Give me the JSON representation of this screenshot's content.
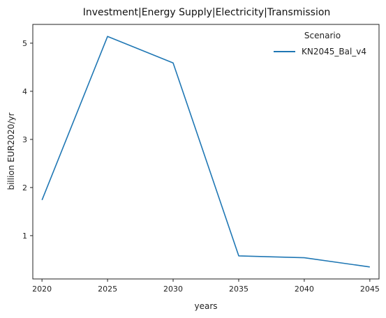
{
  "chart_data": {
    "type": "line",
    "title": "Investment|Energy Supply|Electricity|Transmission",
    "xlabel": "years",
    "ylabel": "billion EUR2020/yr",
    "x": [
      2020,
      2025,
      2030,
      2035,
      2040,
      2045
    ],
    "x_ticks": [
      "2020",
      "2025",
      "2030",
      "2035",
      "2040",
      "2045"
    ],
    "y_ticks": [
      "1",
      "2",
      "3",
      "4",
      "5"
    ],
    "y_tick_values": [
      1,
      2,
      3,
      4,
      5
    ],
    "xlim": [
      2019.3,
      2045.7
    ],
    "ylim": [
      0.1,
      5.39
    ],
    "grid": false,
    "legend": {
      "title": "Scenario",
      "placement": "top-right"
    },
    "series": [
      {
        "name": "KN2045_Bal_v4",
        "color": "#1f77b4",
        "values": [
          1.74,
          5.14,
          4.59,
          0.58,
          0.54,
          0.35
        ]
      }
    ]
  }
}
